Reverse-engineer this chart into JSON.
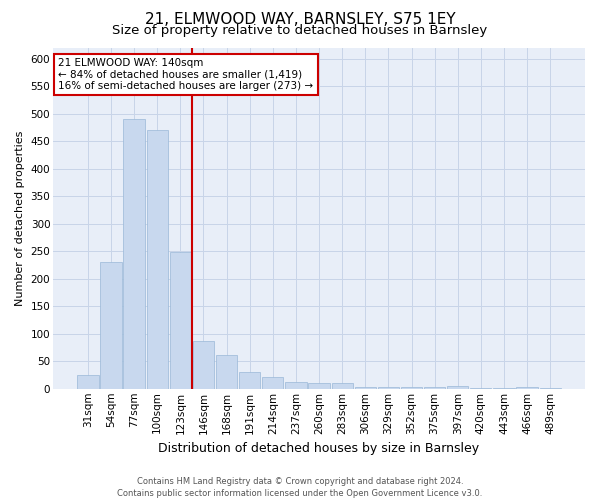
{
  "title": "21, ELMWOOD WAY, BARNSLEY, S75 1EY",
  "subtitle": "Size of property relative to detached houses in Barnsley",
  "xlabel": "Distribution of detached houses by size in Barnsley",
  "ylabel": "Number of detached properties",
  "bar_labels": [
    "31sqm",
    "54sqm",
    "77sqm",
    "100sqm",
    "123sqm",
    "146sqm",
    "168sqm",
    "191sqm",
    "214sqm",
    "237sqm",
    "260sqm",
    "283sqm",
    "306sqm",
    "329sqm",
    "352sqm",
    "375sqm",
    "397sqm",
    "420sqm",
    "443sqm",
    "466sqm",
    "489sqm"
  ],
  "bar_values": [
    25,
    230,
    490,
    470,
    248,
    87,
    62,
    30,
    22,
    12,
    10,
    10,
    4,
    4,
    4,
    4,
    5,
    1,
    1,
    4,
    2
  ],
  "bar_color": "#c8d8ee",
  "bar_edge_color": "#9ab8d8",
  "red_line_index": 5,
  "annotation_text": "21 ELMWOOD WAY: 140sqm\n← 84% of detached houses are smaller (1,419)\n16% of semi-detached houses are larger (273) →",
  "annotation_box_color": "#ffffff",
  "annotation_box_edge": "#cc0000",
  "red_line_color": "#cc0000",
  "ylim": [
    0,
    620
  ],
  "yticks": [
    0,
    50,
    100,
    150,
    200,
    250,
    300,
    350,
    400,
    450,
    500,
    550,
    600
  ],
  "grid_color": "#c8d4e8",
  "background_color": "#e8eef8",
  "footer_text": "Contains HM Land Registry data © Crown copyright and database right 2024.\nContains public sector information licensed under the Open Government Licence v3.0.",
  "title_fontsize": 11,
  "subtitle_fontsize": 9.5,
  "xlabel_fontsize": 9,
  "ylabel_fontsize": 8,
  "tick_fontsize": 7.5,
  "annotation_fontsize": 7.5,
  "footer_fontsize": 6
}
